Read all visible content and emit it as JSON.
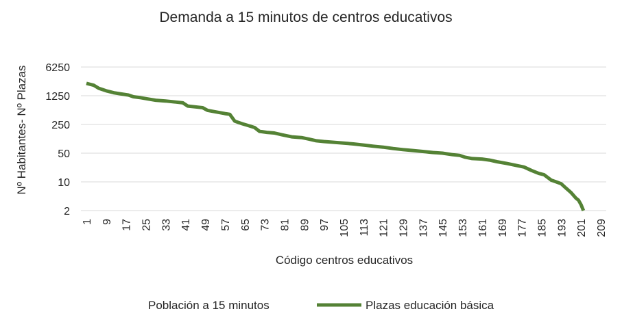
{
  "chart_data": {
    "type": "line",
    "title": "Demanda a 15 minutos de centros educativos",
    "xlabel": "Código centros educativos",
    "ylabel": "Nº Habitantes- Nº Plazas",
    "y_scale": "log5",
    "y_ticks": [
      "2",
      "10",
      "50",
      "250",
      "1250",
      "6250"
    ],
    "x_ticks": [
      "1",
      "9",
      "17",
      "25",
      "33",
      "41",
      "49",
      "57",
      "65",
      "73",
      "81",
      "89",
      "97",
      "105",
      "113",
      "121",
      "129",
      "137",
      "145",
      "153",
      "161",
      "169",
      "177",
      "185",
      "193",
      "201",
      "209"
    ],
    "xlim": [
      1,
      209
    ],
    "ylim": [
      2,
      6250
    ],
    "grid": "horizontal",
    "legend_position": "bottom",
    "series": [
      {
        "name": "Población a 15 minutos",
        "color": "#ffffff",
        "points": []
      },
      {
        "name": "Plazas educación básica",
        "color": "#548235",
        "points": [
          [
            1,
            2500
          ],
          [
            4,
            2250
          ],
          [
            6,
            1900
          ],
          [
            9,
            1650
          ],
          [
            12,
            1480
          ],
          [
            15,
            1380
          ],
          [
            18,
            1300
          ],
          [
            20,
            1180
          ],
          [
            23,
            1120
          ],
          [
            26,
            1040
          ],
          [
            29,
            970
          ],
          [
            33,
            930
          ],
          [
            37,
            880
          ],
          [
            40,
            840
          ],
          [
            42,
            700
          ],
          [
            46,
            660
          ],
          [
            48,
            640
          ],
          [
            50,
            550
          ],
          [
            53,
            510
          ],
          [
            57,
            460
          ],
          [
            59,
            440
          ],
          [
            61,
            300
          ],
          [
            64,
            260
          ],
          [
            66,
            240
          ],
          [
            69,
            210
          ],
          [
            71,
            170
          ],
          [
            74,
            160
          ],
          [
            77,
            155
          ],
          [
            80,
            140
          ],
          [
            84,
            125
          ],
          [
            88,
            120
          ],
          [
            91,
            110
          ],
          [
            94,
            100
          ],
          [
            97,
            96
          ],
          [
            101,
            92
          ],
          [
            105,
            88
          ],
          [
            109,
            84
          ],
          [
            113,
            79
          ],
          [
            117,
            74
          ],
          [
            121,
            70
          ],
          [
            125,
            65
          ],
          [
            129,
            61
          ],
          [
            133,
            58
          ],
          [
            137,
            55
          ],
          [
            141,
            52
          ],
          [
            145,
            50
          ],
          [
            149,
            46
          ],
          [
            152,
            44
          ],
          [
            154,
            40
          ],
          [
            157,
            37
          ],
          [
            161,
            36
          ],
          [
            164,
            34
          ],
          [
            167,
            31
          ],
          [
            171,
            28
          ],
          [
            175,
            25
          ],
          [
            178,
            23
          ],
          [
            181,
            19
          ],
          [
            184,
            16
          ],
          [
            186,
            15
          ],
          [
            189,
            11
          ],
          [
            191,
            10
          ],
          [
            193,
            9
          ],
          [
            195,
            7
          ],
          [
            197,
            5.5
          ],
          [
            199,
            4.0
          ],
          [
            200,
            3.6
          ],
          [
            201,
            2.8
          ],
          [
            202,
            2.0
          ]
        ]
      }
    ]
  }
}
